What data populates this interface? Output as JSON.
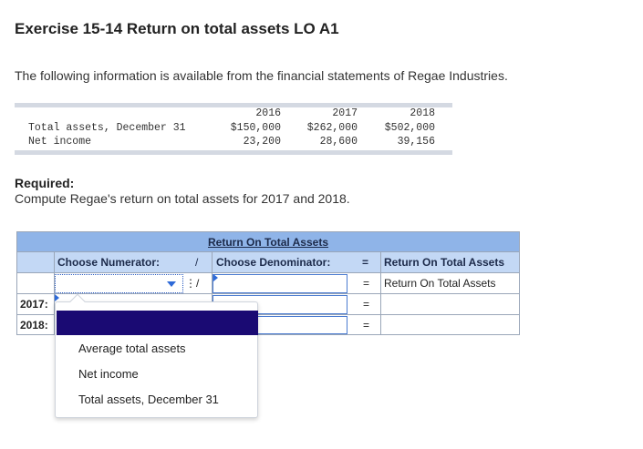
{
  "exercise": {
    "title": "Exercise 15-14 Return on total assets LO A1",
    "intro": "The following information is available from the financial statements of Regae Industries."
  },
  "financials": {
    "years": [
      "2016",
      "2017",
      "2018"
    ],
    "rows": [
      {
        "label": "Total assets, December 31",
        "values": [
          "$150,000",
          "$262,000",
          "$502,000"
        ]
      },
      {
        "label": "Net income",
        "values": [
          "23,200",
          "28,600",
          "39,156"
        ]
      }
    ]
  },
  "required": {
    "heading": "Required:",
    "text": "Compute Regae's return on total assets for 2017 and 2018."
  },
  "answer_table": {
    "title": "Return On Total Assets",
    "col_numerator": "Choose Numerator:",
    "divide": "/",
    "col_denominator": "Choose Denominator:",
    "equals": "=",
    "col_result": "Return On Total Assets",
    "row0_result": "Return On Total Assets",
    "row_labels": [
      "2017:",
      "2018:"
    ]
  },
  "dropdown": {
    "options": [
      "Average total assets",
      "Net income",
      "Total assets, December 31"
    ]
  },
  "colors": {
    "header_dark": "#8fb4e8",
    "header_light": "#c3d8f5",
    "selected": "#1a0a73",
    "accent": "#2e6ad8"
  }
}
